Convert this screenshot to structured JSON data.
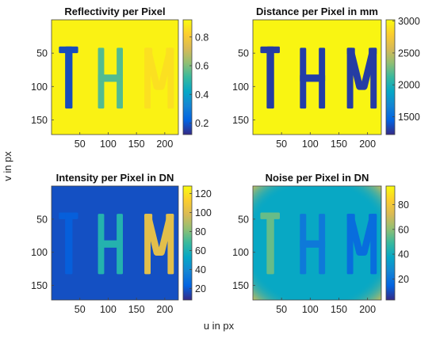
{
  "figure": {
    "shared_xlabel": "u in px",
    "shared_ylabel": "v in px"
  },
  "colors": {
    "parula": [
      "#352a87",
      "#0363e1",
      "#1485d4",
      "#06a7c6",
      "#38b99e",
      "#92bf73",
      "#d9ba56",
      "#fcce2e",
      "#f9fb0e"
    ]
  },
  "chart_data": [
    {
      "type": "heatmap",
      "title": "Reflectivity per Pixel",
      "xticks": [
        50,
        100,
        150,
        200
      ],
      "yticks": [
        50,
        100,
        150
      ],
      "xlim": [
        0,
        224
      ],
      "ylim": [
        0,
        172
      ],
      "y_reversed": true,
      "colorbar": {
        "range": [
          0.12,
          0.92
        ],
        "ticks": [
          "0.2",
          "0.4",
          "0.6",
          "0.8"
        ],
        "tick_values": [
          0.2,
          0.4,
          0.6,
          0.8
        ]
      },
      "background_value": 0.9,
      "letters": [
        {
          "char": "T",
          "value": 0.18
        },
        {
          "char": "H",
          "value": 0.55
        },
        {
          "char": "M",
          "value": 0.86
        }
      ]
    },
    {
      "type": "heatmap",
      "title": "Distance per Pixel in mm",
      "xticks": [
        50,
        100,
        150,
        200
      ],
      "yticks": [
        50,
        100,
        150
      ],
      "xlim": [
        0,
        224
      ],
      "ylim": [
        0,
        172
      ],
      "y_reversed": true,
      "colorbar": {
        "range": [
          1220,
          3020
        ],
        "ticks": [
          "1500",
          "2000",
          "2500",
          "3000"
        ],
        "tick_values": [
          1500,
          2000,
          2500,
          3000
        ]
      },
      "background_value": 2990,
      "letters": [
        {
          "char": "T",
          "value": 1290
        },
        {
          "char": "H",
          "value": 1300
        },
        {
          "char": "M",
          "value": 1290
        }
      ]
    },
    {
      "type": "heatmap",
      "title": "Intensity per Pixel in DN",
      "xticks": [
        50,
        100,
        150,
        200
      ],
      "yticks": [
        50,
        100,
        150
      ],
      "xlim": [
        0,
        224
      ],
      "ylim": [
        0,
        172
      ],
      "y_reversed": true,
      "colorbar": {
        "range": [
          8,
          128
        ],
        "ticks": [
          "20",
          "40",
          "60",
          "80",
          "100",
          "120"
        ],
        "tick_values": [
          20,
          40,
          60,
          80,
          100,
          120
        ]
      },
      "background_value": 18,
      "letters": [
        {
          "char": "T",
          "value": 22
        },
        {
          "char": "H",
          "value": 62
        },
        {
          "char": "M",
          "value": 102
        }
      ]
    },
    {
      "type": "heatmap",
      "title": "Noise per Pixel in DN",
      "xticks": [
        50,
        100,
        150,
        200
      ],
      "yticks": [
        50,
        100,
        150
      ],
      "xlim": [
        0,
        224
      ],
      "ylim": [
        0,
        172
      ],
      "y_reversed": true,
      "colorbar": {
        "range": [
          3,
          95
        ],
        "ticks": [
          "20",
          "40",
          "60",
          "80"
        ],
        "tick_values": [
          20,
          40,
          60,
          80
        ]
      },
      "background_value": 38,
      "border_value": 75,
      "letters": [
        {
          "char": "T",
          "value": 55
        },
        {
          "char": "H",
          "value": 22
        },
        {
          "char": "M",
          "value": 18
        }
      ]
    }
  ]
}
